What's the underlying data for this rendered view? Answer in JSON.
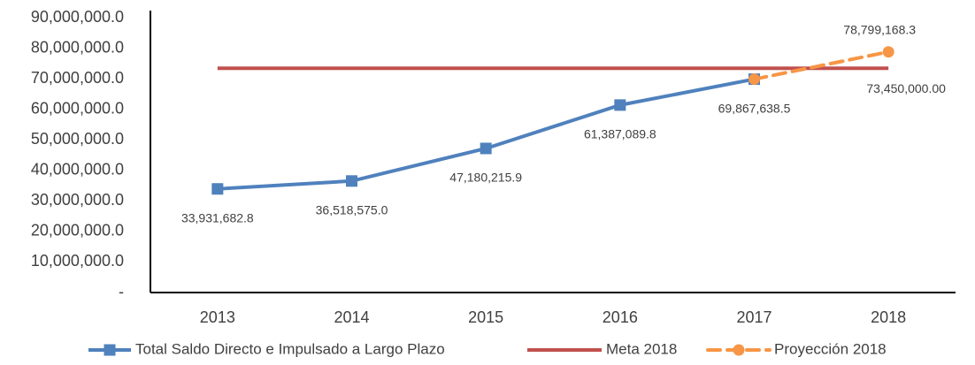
{
  "chart_data": {
    "type": "line",
    "categories": [
      "2013",
      "2014",
      "2015",
      "2016",
      "2017",
      "2018"
    ],
    "series": [
      {
        "name": "Total Saldo Directo e Impulsado a Largo Plazo",
        "color": "#4f81bd",
        "marker": "square",
        "dash": false,
        "values": [
          33931682.8,
          36518575.0,
          47180215.9,
          61387089.8,
          69867638.5,
          null
        ],
        "value_labels": [
          "33,931,682.8",
          "36,518,575.0",
          "47,180,215.9",
          "61,387,089.8",
          "69,867,638.5",
          null
        ]
      },
      {
        "name": "Meta 2018",
        "color": "#c0504d",
        "marker": null,
        "dash": false,
        "values": [
          73450000,
          73450000,
          73450000,
          73450000,
          73450000,
          73450000
        ],
        "value_labels": [
          null,
          null,
          null,
          null,
          null,
          "73,450,000.00"
        ]
      },
      {
        "name": "Proyección 2018",
        "color": "#f79646",
        "marker": "circle",
        "dash": true,
        "values": [
          null,
          null,
          null,
          null,
          69867638.5,
          78799168.3
        ],
        "value_labels": [
          null,
          null,
          null,
          null,
          null,
          "78,799,168.3"
        ]
      }
    ],
    "ylim": [
      0,
      90000000
    ],
    "yticks": [
      {
        "value": 0,
        "label": "-"
      },
      {
        "value": 10000000,
        "label": "10,000,000.0"
      },
      {
        "value": 20000000,
        "label": "20,000,000.0"
      },
      {
        "value": 30000000,
        "label": "30,000,000.0"
      },
      {
        "value": 40000000,
        "label": "40,000,000.0"
      },
      {
        "value": 50000000,
        "label": "50,000,000.0"
      },
      {
        "value": 60000000,
        "label": "60,000,000.0"
      },
      {
        "value": 70000000,
        "label": "70,000,000.0"
      },
      {
        "value": 80000000,
        "label": "80,000,000.0"
      },
      {
        "value": 90000000,
        "label": "90,000,000.0"
      }
    ],
    "grid": false,
    "legend": "bottom"
  }
}
